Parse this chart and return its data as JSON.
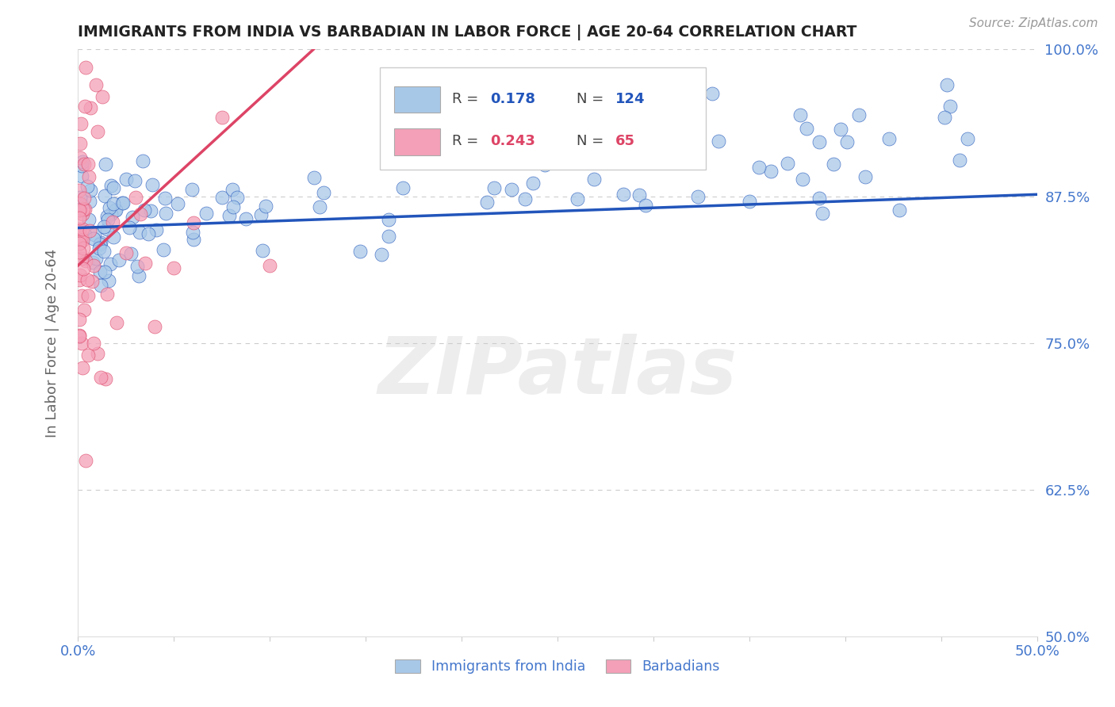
{
  "title": "IMMIGRANTS FROM INDIA VS BARBADIAN IN LABOR FORCE | AGE 20-64 CORRELATION CHART",
  "source": "Source: ZipAtlas.com",
  "ylabel": "In Labor Force | Age 20-64",
  "xlim": [
    0.0,
    0.5
  ],
  "ylim": [
    0.5,
    1.0
  ],
  "yticks": [
    0.5,
    0.625,
    0.75,
    0.875,
    1.0
  ],
  "yticklabels": [
    "50.0%",
    "62.5%",
    "75.0%",
    "87.5%",
    "100.0%"
  ],
  "india_R": 0.178,
  "india_N": 124,
  "barbadian_R": 0.243,
  "barbadian_N": 65,
  "india_color": "#a8c8e8",
  "barbadian_color": "#f4a0b8",
  "india_line_color": "#2255bb",
  "barbadian_line_color": "#dd4466",
  "watermark_text": "ZIPatlas",
  "background_color": "#ffffff",
  "grid_color": "#cccccc",
  "tick_color": "#4477cc",
  "title_color": "#222222",
  "source_color": "#999999"
}
